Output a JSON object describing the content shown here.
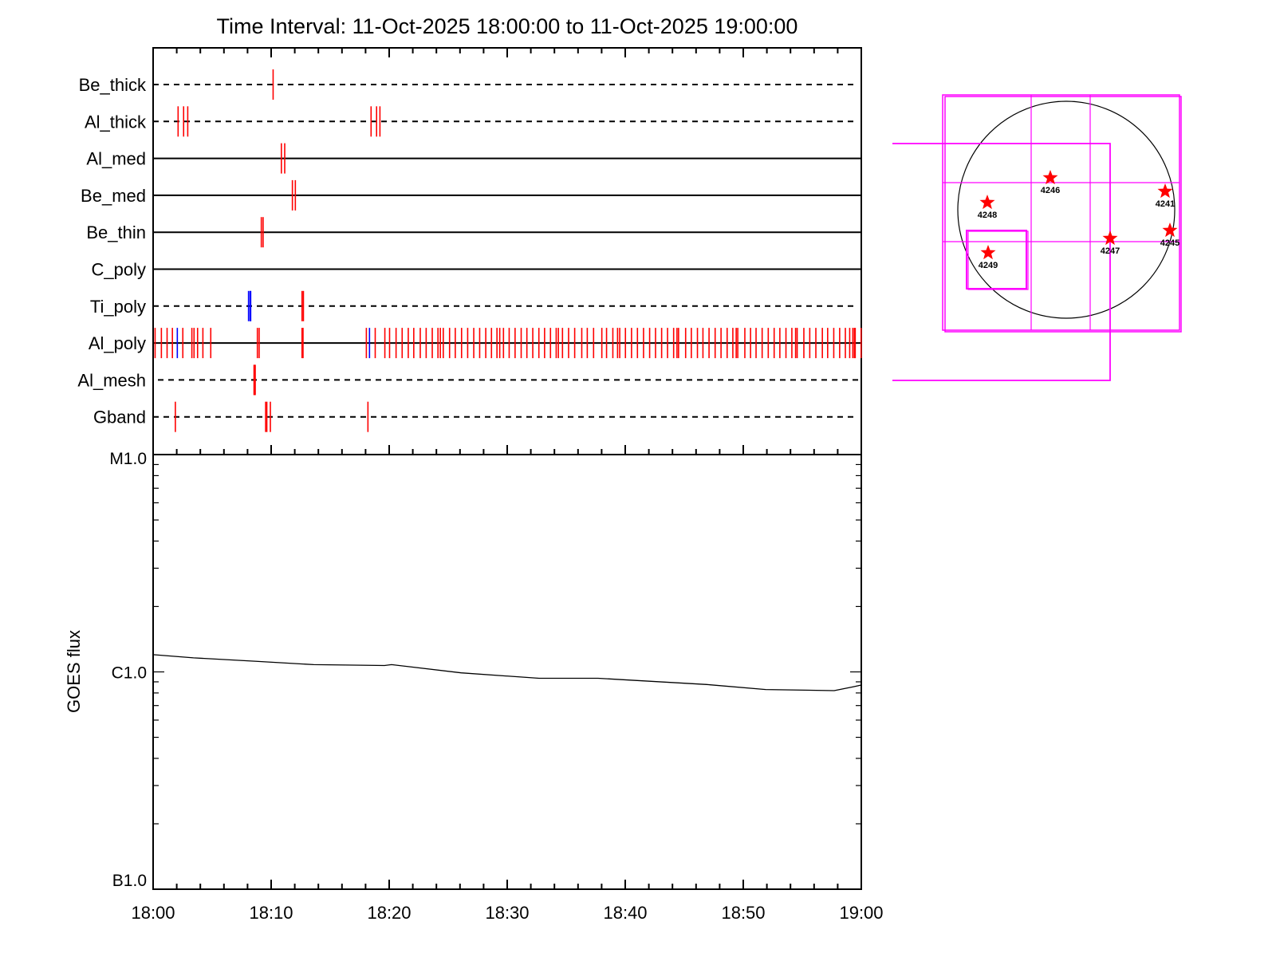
{
  "chart_data": [
    {
      "type": "event-timeline",
      "title": "Time Interval: 11-Oct-2025 18:00:00 to 11-Oct-2025 19:00:00",
      "xlim": [
        "18:00:00",
        "19:00:00"
      ],
      "colors": {
        "red": "#ff0000",
        "blue": "#0000ff",
        "axis": "#000000"
      },
      "rows": [
        {
          "name": "Be_thick",
          "line": "dashed",
          "red": [
            "18:10:10"
          ],
          "blue": []
        },
        {
          "name": "Al_thick",
          "line": "dashed",
          "red": [
            "18:02:07",
            "18:02:35",
            "18:02:56",
            "18:18:28",
            "18:18:56",
            "18:19:13"
          ],
          "blue": []
        },
        {
          "name": "Al_med",
          "line": "solid",
          "red": [
            "18:10:52",
            "18:11:09"
          ],
          "blue": []
        },
        {
          "name": "Be_med",
          "line": "solid",
          "red": [
            "18:11:48",
            "18:12:03"
          ],
          "blue": []
        },
        {
          "name": "Be_thin",
          "line": "solid",
          "red": [
            "18:09:10",
            "18:09:19"
          ],
          "blue": []
        },
        {
          "name": "C_poly",
          "line": "solid",
          "red": [],
          "blue": []
        },
        {
          "name": "Ti_poly",
          "line": "dashed",
          "red": [
            "18:12:37",
            "18:12:44"
          ],
          "blue": [
            "18:08:05",
            "18:08:13",
            "18:08:16"
          ]
        },
        {
          "name": "Al_poly",
          "line": "solid",
          "red": [
            "18:00:10",
            "18:00:42",
            "18:01:11",
            "18:01:38",
            "18:02:31",
            "18:03:17",
            "18:03:28",
            "18:03:46",
            "18:04:13",
            "18:04:53",
            "18:08:50",
            "18:08:59",
            "18:12:37",
            "18:12:42",
            "18:18:04",
            "18:18:49",
            "18:19:38",
            "18:20:02",
            "18:20:35",
            "18:21:06",
            "18:21:37",
            "18:22:05",
            "18:22:38",
            "18:23:08",
            "18:23:39",
            "18:24:08",
            "18:24:20",
            "18:24:35",
            "18:25:07",
            "18:25:36",
            "18:26:08",
            "18:26:39",
            "18:27:10",
            "18:27:40",
            "18:28:11",
            "18:28:40",
            "18:29:08",
            "18:29:22",
            "18:29:41",
            "18:30:10",
            "18:30:40",
            "18:31:11",
            "18:31:40",
            "18:32:10",
            "18:32:41",
            "18:33:10",
            "18:33:40",
            "18:34:09",
            "18:34:20",
            "18:34:41",
            "18:35:12",
            "18:35:43",
            "18:36:19",
            "18:36:47",
            "18:37:19",
            "18:38:01",
            "18:38:25",
            "18:38:57",
            "18:39:21",
            "18:39:32",
            "18:40:01",
            "18:40:32",
            "18:41:02",
            "18:41:33",
            "18:42:04",
            "18:42:34",
            "18:43:05",
            "18:43:35",
            "18:44:06",
            "18:44:23",
            "18:44:31",
            "18:45:07",
            "18:45:36",
            "18:46:07",
            "18:46:35",
            "18:47:06",
            "18:47:37",
            "18:48:07",
            "18:48:38",
            "18:49:07",
            "18:49:24",
            "18:49:32",
            "18:50:08",
            "18:50:37",
            "18:51:05",
            "18:51:36",
            "18:52:07",
            "18:52:37",
            "18:53:06",
            "18:53:37",
            "18:54:07",
            "18:54:26",
            "18:54:34",
            "18:55:08",
            "18:55:38",
            "18:56:09",
            "18:56:42",
            "18:57:09",
            "18:57:40",
            "18:58:10",
            "18:58:39",
            "18:59:01",
            "18:59:17",
            "18:59:25",
            "18:59:29",
            "18:59:59"
          ],
          "blue": [
            "18:02:03",
            "18:18:20"
          ]
        },
        {
          "name": "Al_mesh",
          "line": "dashed",
          "red": [
            "18:08:33",
            "18:08:36",
            "18:08:39"
          ],
          "blue": []
        },
        {
          "name": "Gband",
          "line": "dashed",
          "red": [
            "18:01:53",
            "18:09:32",
            "18:09:38",
            "18:09:56",
            "18:18:12"
          ],
          "blue": []
        }
      ]
    },
    {
      "type": "line",
      "ylabel": "GOES flux",
      "yscale": "log",
      "ylim": [
        1e-07,
        1e-05
      ],
      "ytick_labels": [
        {
          "value": 1e-05,
          "label": "M1.0"
        },
        {
          "value": 1e-06,
          "label": "C1.0"
        },
        {
          "value": 1e-07,
          "label": "B1.0"
        }
      ],
      "xlim": [
        "18:00:00",
        "19:00:00"
      ],
      "xtick_labels": [
        "18:00",
        "18:10",
        "18:20",
        "18:30",
        "18:40",
        "18:50",
        "19:00"
      ],
      "series": [
        {
          "x": [
            "18:00:00",
            "18:03:25",
            "18:08:37",
            "18:13:36",
            "18:19:36",
            "18:20:12",
            "18:26:06",
            "18:32:42",
            "18:37:42",
            "18:46:54",
            "18:51:54",
            "18:57:42",
            "18:59:18",
            "19:00:00"
          ],
          "y": [
            1.2e-06,
            1.16e-06,
            1.12e-06,
            1.08e-06,
            1.07e-06,
            1.08e-06,
            9.9e-07,
            9.35e-07,
            9.35e-07,
            8.75e-07,
            8.3e-07,
            8.2e-07,
            8.53e-07,
            8.7e-07
          ],
          "color": "#000000"
        }
      ]
    },
    {
      "type": "solar-map",
      "colors": {
        "limb": "#000000",
        "fov": "#ff00ff",
        "star": "#ff0000"
      },
      "regions": [
        "4246",
        "4248",
        "4249",
        "4247",
        "4241",
        "4245"
      ]
    }
  ]
}
